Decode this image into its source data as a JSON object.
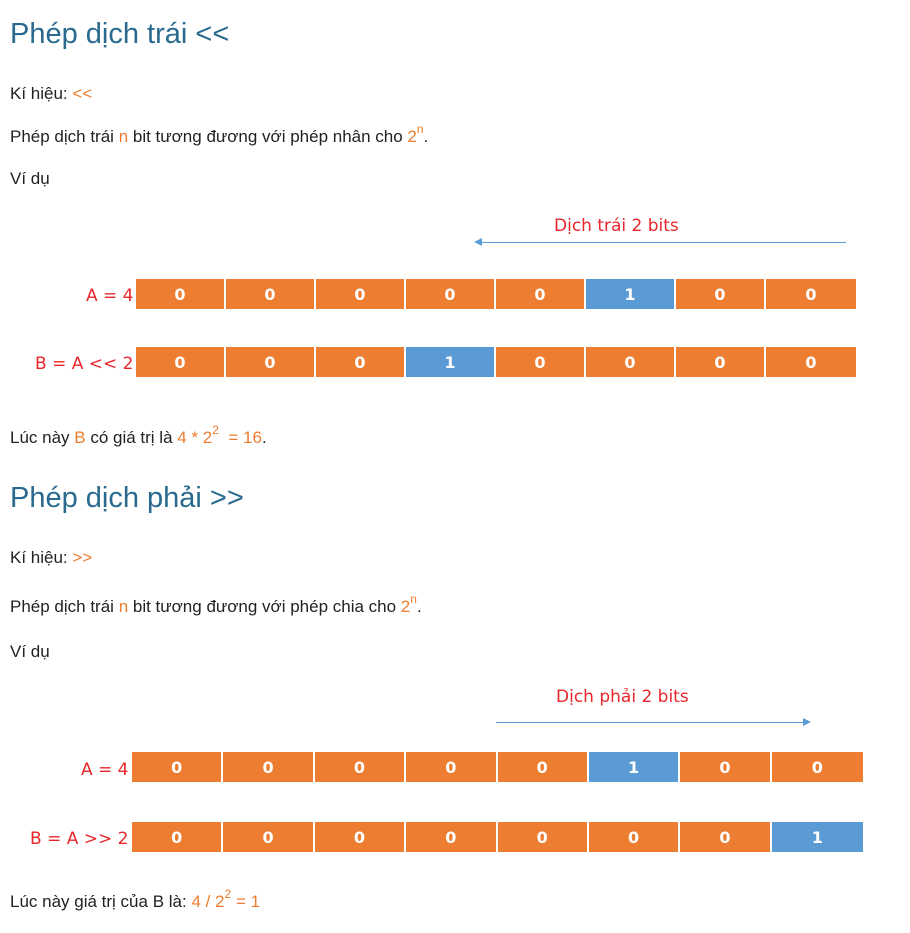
{
  "left": {
    "title": "Phép dịch trái <<",
    "symbol_label": "Kí hiệu: ",
    "symbol": "<<",
    "desc_pre": "Phép dịch trái ",
    "desc_n": "n",
    "desc_post": " bit tương đương với phép nhân cho ",
    "desc_base": "2",
    "desc_exp": "n",
    "desc_end": ".",
    "example": "Ví dụ",
    "arrow_label": "Dịch trái 2 bits",
    "row_a_label": "A = 4",
    "row_a_bits": [
      "0",
      "0",
      "0",
      "0",
      "0",
      "1",
      "0",
      "0"
    ],
    "row_b_label": "B =  A << 2",
    "row_b_bits": [
      "0",
      "0",
      "0",
      "1",
      "0",
      "0",
      "0",
      "0"
    ],
    "result_pre": "Lúc này ",
    "result_var": "B",
    "result_mid": " có giá trị là ",
    "result_expr": "4 * 2",
    "result_exp": "2",
    "result_val": "  = 16",
    "result_end": "."
  },
  "right": {
    "title": "Phép dịch phải >>",
    "symbol_label": "Kí hiệu: ",
    "symbol": ">>",
    "desc_pre": "Phép dịch trái ",
    "desc_n": "n",
    "desc_post": " bit tương đương với phép chia cho ",
    "desc_base": "2",
    "desc_exp": "n",
    "desc_end": ".",
    "example": "Ví dụ",
    "arrow_label": "Dịch phải 2 bits",
    "row_a_label": "A = 4",
    "row_a_bits": [
      "0",
      "0",
      "0",
      "0",
      "0",
      "1",
      "0",
      "0"
    ],
    "row_b_label": "B =  A >> 2",
    "row_b_bits": [
      "0",
      "0",
      "0",
      "0",
      "0",
      "0",
      "0",
      "1"
    ],
    "result_pre": "Lúc này giá trị của B là: ",
    "result_expr": "4 / 2",
    "result_exp": "2",
    "result_val": " = 1"
  },
  "colors": {
    "heading": "#2a6a8f",
    "accent": "#ed7d31",
    "highlight": "#5b9bd5",
    "label_red": "#e8262b"
  }
}
